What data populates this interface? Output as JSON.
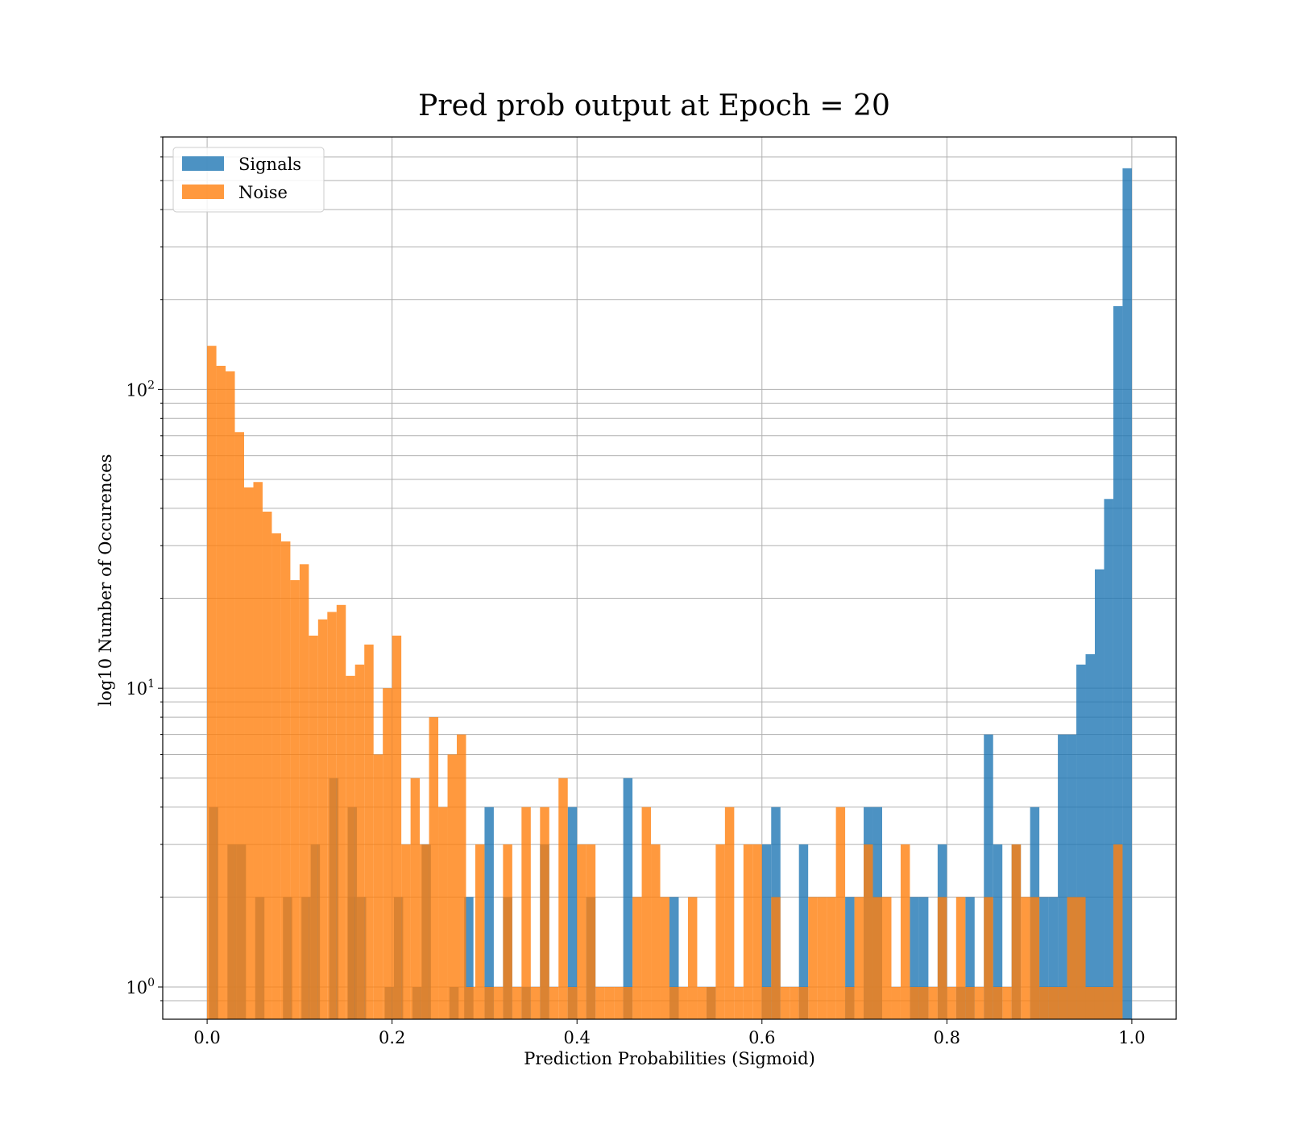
{
  "chart_data": {
    "type": "bar",
    "title": "Pred prob output at Epoch = 20",
    "xlabel": "Prediction Probabilities (Sigmoid)",
    "ylabel": "log10 Number of Occurences",
    "xlim": [
      -0.048,
      1.048
    ],
    "ylim": [
      0.78,
      700
    ],
    "yscale": "log",
    "grid": true,
    "legend_position": "top-left",
    "x_ticks": [
      "0.0",
      "0.2",
      "0.4",
      "0.6",
      "0.8",
      "1.0"
    ],
    "y_ticks": [
      {
        "base": "10",
        "exp": "0",
        "value": 1
      },
      {
        "base": "10",
        "exp": "1",
        "value": 10
      },
      {
        "base": "10",
        "exp": "2",
        "value": 100
      }
    ],
    "bin_width": 0.01,
    "series": [
      {
        "name": "Signals",
        "color": "#1f77b4",
        "opacity": 0.8,
        "bins": [
          [
            0.007,
            4
          ],
          [
            0.027,
            3
          ],
          [
            0.037,
            3
          ],
          [
            0.057,
            2
          ],
          [
            0.087,
            2
          ],
          [
            0.107,
            2
          ],
          [
            0.117,
            3
          ],
          [
            0.137,
            5
          ],
          [
            0.157,
            4
          ],
          [
            0.157,
            2
          ],
          [
            0.167,
            2
          ],
          [
            0.197,
            1
          ],
          [
            0.207,
            2
          ],
          [
            0.227,
            1
          ],
          [
            0.237,
            3
          ],
          [
            0.267,
            1
          ],
          [
            0.283,
            2
          ],
          [
            0.305,
            4
          ],
          [
            0.325,
            2
          ],
          [
            0.345,
            1
          ],
          [
            0.365,
            3
          ],
          [
            0.395,
            4
          ],
          [
            0.415,
            2
          ],
          [
            0.455,
            5
          ],
          [
            0.505,
            2
          ],
          [
            0.545,
            1
          ],
          [
            0.605,
            3
          ],
          [
            0.615,
            4
          ],
          [
            0.645,
            3
          ],
          [
            0.695,
            2
          ],
          [
            0.715,
            4
          ],
          [
            0.725,
            4
          ],
          [
            0.765,
            2
          ],
          [
            0.775,
            2
          ],
          [
            0.795,
            3
          ],
          [
            0.815,
            1
          ],
          [
            0.825,
            2
          ],
          [
            0.845,
            7
          ],
          [
            0.855,
            3
          ],
          [
            0.875,
            3
          ],
          [
            0.895,
            4
          ],
          [
            0.905,
            2
          ],
          [
            0.915,
            2
          ],
          [
            0.925,
            7
          ],
          [
            0.935,
            7
          ],
          [
            0.945,
            12
          ],
          [
            0.955,
            13
          ],
          [
            0.965,
            25
          ],
          [
            0.975,
            43
          ],
          [
            0.985,
            190
          ],
          [
            0.995,
            550
          ]
        ]
      },
      {
        "name": "Noise",
        "color": "#ff7f0e",
        "opacity": 0.8,
        "bins": [
          [
            0.005,
            140
          ],
          [
            0.015,
            120
          ],
          [
            0.025,
            115
          ],
          [
            0.035,
            72
          ],
          [
            0.045,
            47
          ],
          [
            0.055,
            49
          ],
          [
            0.065,
            39
          ],
          [
            0.075,
            33
          ],
          [
            0.085,
            31
          ],
          [
            0.095,
            23
          ],
          [
            0.105,
            26
          ],
          [
            0.115,
            15
          ],
          [
            0.125,
            17
          ],
          [
            0.135,
            18
          ],
          [
            0.145,
            19
          ],
          [
            0.155,
            11
          ],
          [
            0.165,
            12
          ],
          [
            0.175,
            14
          ],
          [
            0.185,
            6
          ],
          [
            0.195,
            10
          ],
          [
            0.205,
            15
          ],
          [
            0.215,
            3
          ],
          [
            0.225,
            5
          ],
          [
            0.235,
            3
          ],
          [
            0.245,
            8
          ],
          [
            0.255,
            4
          ],
          [
            0.265,
            6
          ],
          [
            0.275,
            7
          ],
          [
            0.285,
            1
          ],
          [
            0.295,
            3
          ],
          [
            0.305,
            1
          ],
          [
            0.315,
            1
          ],
          [
            0.325,
            3
          ],
          [
            0.335,
            1
          ],
          [
            0.345,
            4
          ],
          [
            0.355,
            1
          ],
          [
            0.365,
            4
          ],
          [
            0.375,
            1
          ],
          [
            0.385,
            5
          ],
          [
            0.395,
            1
          ],
          [
            0.405,
            3
          ],
          [
            0.415,
            3
          ],
          [
            0.425,
            1
          ],
          [
            0.435,
            1
          ],
          [
            0.445,
            1
          ],
          [
            0.455,
            1
          ],
          [
            0.465,
            2
          ],
          [
            0.475,
            4
          ],
          [
            0.485,
            3
          ],
          [
            0.495,
            2
          ],
          [
            0.505,
            1
          ],
          [
            0.515,
            1
          ],
          [
            0.525,
            2
          ],
          [
            0.535,
            1
          ],
          [
            0.545,
            1
          ],
          [
            0.555,
            3
          ],
          [
            0.565,
            4
          ],
          [
            0.575,
            1
          ],
          [
            0.585,
            3
          ],
          [
            0.595,
            3
          ],
          [
            0.605,
            1
          ],
          [
            0.615,
            2
          ],
          [
            0.625,
            1
          ],
          [
            0.635,
            1
          ],
          [
            0.645,
            1
          ],
          [
            0.655,
            2
          ],
          [
            0.665,
            2
          ],
          [
            0.675,
            2
          ],
          [
            0.685,
            4
          ],
          [
            0.695,
            1
          ],
          [
            0.705,
            2
          ],
          [
            0.715,
            3
          ],
          [
            0.725,
            2
          ],
          [
            0.735,
            2
          ],
          [
            0.745,
            1
          ],
          [
            0.755,
            3
          ],
          [
            0.765,
            1
          ],
          [
            0.775,
            1
          ],
          [
            0.785,
            1
          ],
          [
            0.795,
            2
          ],
          [
            0.805,
            1
          ],
          [
            0.815,
            2
          ],
          [
            0.825,
            1
          ],
          [
            0.835,
            1
          ],
          [
            0.845,
            2
          ],
          [
            0.855,
            1
          ],
          [
            0.865,
            1
          ],
          [
            0.875,
            3
          ],
          [
            0.885,
            2
          ],
          [
            0.895,
            2
          ],
          [
            0.905,
            1
          ],
          [
            0.915,
            1
          ],
          [
            0.925,
            1
          ],
          [
            0.935,
            2
          ],
          [
            0.945,
            2
          ],
          [
            0.955,
            1
          ],
          [
            0.965,
            1
          ],
          [
            0.975,
            1
          ],
          [
            0.985,
            3
          ]
        ]
      }
    ]
  }
}
